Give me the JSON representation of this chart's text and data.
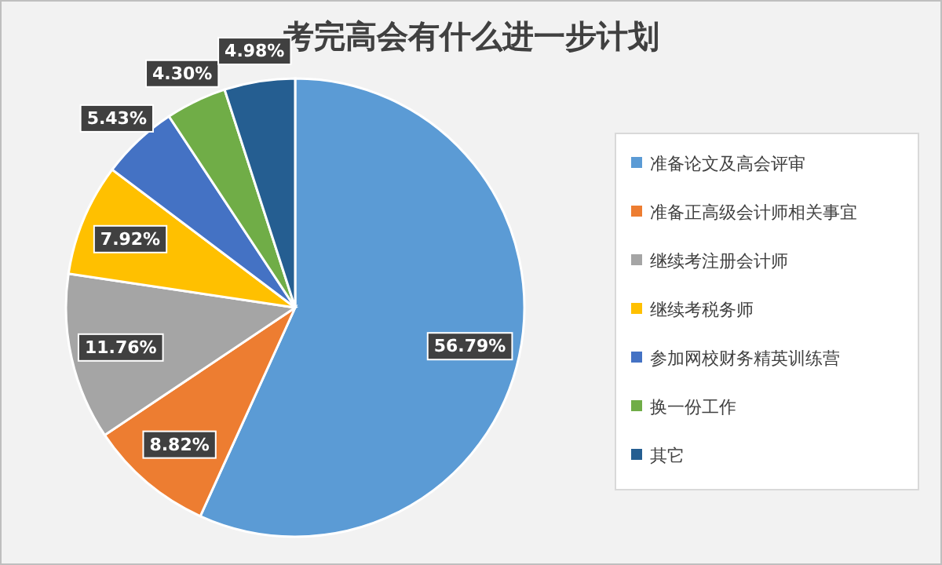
{
  "chart_data": {
    "type": "pie",
    "title": "考完高会有什么进一步计划",
    "categories": [
      "准备论文及高会评审",
      "准备正高级会计师相关事宜",
      "继续考注册会计师",
      "继续考税务师",
      "参加网校财务精英训练营",
      "换一份工作",
      "其它"
    ],
    "values": [
      56.79,
      8.82,
      11.76,
      7.92,
      5.43,
      4.3,
      4.98
    ],
    "colors": [
      "#5b9bd5",
      "#ed7d31",
      "#a5a5a5",
      "#ffc000",
      "#4472c4",
      "#70ad47",
      "#255e91"
    ],
    "value_labels": [
      "56.79%",
      "8.82%",
      "11.76%",
      "7.92%",
      "5.43%",
      "4.30%",
      "4.98%"
    ],
    "legend": "right"
  }
}
